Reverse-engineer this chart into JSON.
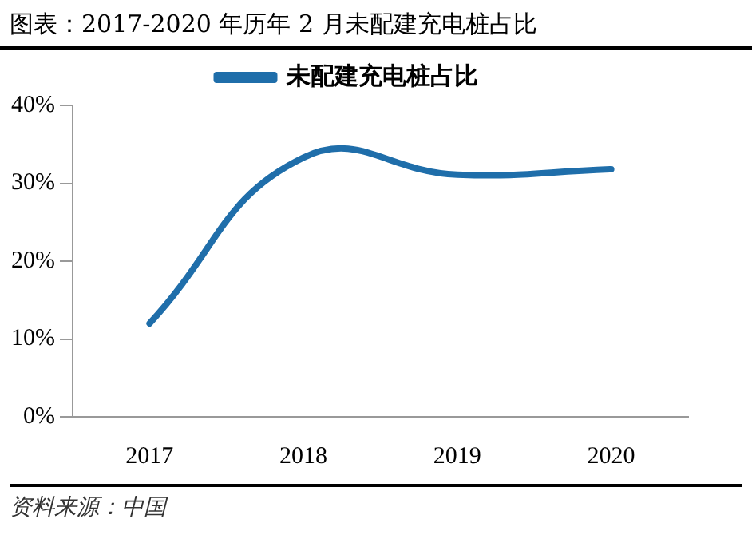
{
  "chart_data": {
    "type": "line",
    "title": "图表：2017-2020 年历年 2 月未配建充电桩占比",
    "categories": [
      "2017",
      "2018",
      "2019",
      "2020"
    ],
    "series": [
      {
        "name": "未配建充电桩占比",
        "color": "#1f6eaa",
        "values": [
          12,
          33.3,
          31.1,
          31.8
        ]
      }
    ],
    "ylim": [
      0,
      40
    ],
    "yticks": [
      {
        "value": 0,
        "label": "0%"
      },
      {
        "value": 10,
        "label": "10%"
      },
      {
        "value": 20,
        "label": "20%"
      },
      {
        "value": 30,
        "label": "30%"
      },
      {
        "value": 40,
        "label": "40%"
      }
    ],
    "grid": false,
    "legend": "top",
    "marker": "none",
    "line_style": "solid",
    "annotations": [
      "资料来源：中国"
    ]
  }
}
